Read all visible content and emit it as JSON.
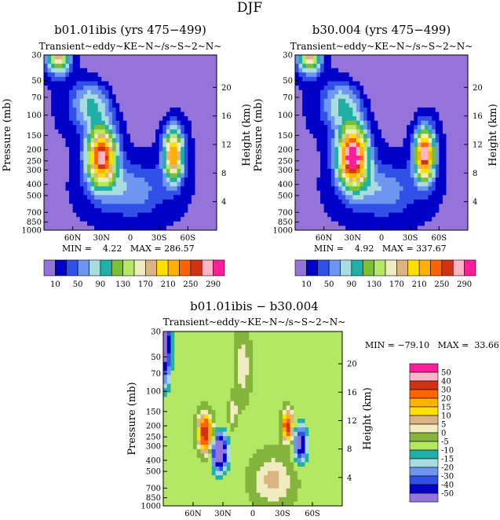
{
  "page_title": "DJF",
  "panels": [
    {
      "title": "b01.01ibis (yrs 475−499)",
      "subtitle": "Transient~eddy~KE~N~/s~S~2~N~",
      "ylabel_left": "Pressure (mb)",
      "ylabel_right": "Height (km)",
      "stats": "MIN =    4.22   MAX = 286.57"
    },
    {
      "title": "b30.004 (yrs 475−499)",
      "subtitle": "Transient~eddy~KE~N~/s~S~2~N~",
      "ylabel_left": "Pressure (mb)",
      "ylabel_right": "Height (km)",
      "stats": "MIN =    4.92   MAX = 337.67"
    },
    {
      "title": "b01.01ibis − b30.004",
      "subtitle": "Transient~eddy~KE~N~/s~S~2~N~",
      "ylabel_left": "Pressure (mb)",
      "ylabel_right": "Height (km)",
      "stats": "MIN = −79.10   MAX =  33.66"
    }
  ],
  "chart_data": [
    {
      "type": "heatmap",
      "title": "b01.01ibis (yrs 475−499)",
      "xlabel": "",
      "ylabel": "Pressure (mb)",
      "y2label": "Height (km)",
      "x_ticks": [
        "60N",
        "30N",
        "0",
        "30S",
        "60S"
      ],
      "x_tick_values": [
        60,
        30,
        0,
        -30,
        -60
      ],
      "xlim": [
        90,
        -90
      ],
      "y_ticks": [
        30,
        50,
        70,
        100,
        150,
        200,
        250,
        300,
        400,
        500,
        700,
        850,
        1000
      ],
      "ylim": [
        30,
        1000
      ],
      "y_scale": "log",
      "y2_ticks": [
        4,
        8,
        12,
        16,
        20
      ],
      "colorbar_labels": [
        10,
        50,
        90,
        130,
        170,
        210,
        250,
        290
      ],
      "colorbar_colors": [
        "#9474d8",
        "#0000c8",
        "#3050e8",
        "#6e96f0",
        "#a8dce0",
        "#20b0a8",
        "#7cc030",
        "#b4e864",
        "#f0ecc0",
        "#dcb484",
        "#ffe000",
        "#ffb000",
        "#ff6400",
        "#d23214",
        "#ffb4c8",
        "#ff1e9a"
      ],
      "min": 4.22,
      "max": 286.57,
      "maxima": [
        {
          "lat": 30,
          "p": 230,
          "value": 286.57
        },
        {
          "lat": -45,
          "p": 220,
          "value": 240
        }
      ]
    },
    {
      "type": "heatmap",
      "title": "b30.004 (yrs 475−499)",
      "xlabel": "",
      "ylabel": "Pressure (mb)",
      "y2label": "Height (km)",
      "x_ticks": [
        "60N",
        "30N",
        "0",
        "30S",
        "60S"
      ],
      "x_tick_values": [
        60,
        30,
        0,
        -30,
        -60
      ],
      "xlim": [
        90,
        -90
      ],
      "y_ticks": [
        30,
        50,
        70,
        100,
        150,
        200,
        250,
        300,
        400,
        500,
        700,
        850,
        1000
      ],
      "ylim": [
        30,
        1000
      ],
      "y_scale": "log",
      "y2_ticks": [
        4,
        8,
        12,
        16,
        20
      ],
      "colorbar_labels": [
        10,
        50,
        90,
        130,
        170,
        210,
        250,
        290
      ],
      "colorbar_colors": [
        "#9474d8",
        "#0000c8",
        "#3050e8",
        "#6e96f0",
        "#a8dce0",
        "#20b0a8",
        "#7cc030",
        "#b4e864",
        "#f0ecc0",
        "#dcb484",
        "#ffe000",
        "#ffb000",
        "#ff6400",
        "#d23214",
        "#ffb4c8",
        "#ff1e9a"
      ],
      "min": 4.92,
      "max": 337.67,
      "maxima": [
        {
          "lat": 30,
          "p": 230,
          "value": 337.67
        },
        {
          "lat": -45,
          "p": 220,
          "value": 260
        }
      ]
    },
    {
      "type": "heatmap",
      "title": "b01.01ibis − b30.004",
      "xlabel": "",
      "ylabel": "Pressure (mb)",
      "y2label": "Height (km)",
      "x_ticks": [
        "60N",
        "30N",
        "0",
        "30S",
        "60S"
      ],
      "x_tick_values": [
        60,
        30,
        0,
        -30,
        -60
      ],
      "xlim": [
        90,
        -90
      ],
      "y_ticks": [
        30,
        50,
        70,
        100,
        150,
        200,
        250,
        300,
        400,
        500,
        700,
        850,
        1000
      ],
      "ylim": [
        30,
        1000
      ],
      "y_scale": "log",
      "y2_ticks": [
        4,
        8,
        12,
        16,
        20
      ],
      "colorbar_labels": [
        50,
        40,
        30,
        20,
        15,
        10,
        5,
        0,
        -5,
        -10,
        -15,
        -20,
        -30,
        -40,
        -50
      ],
      "colorbar_colors": [
        "#ff1e9a",
        "#ffb4c8",
        "#d23214",
        "#ff6400",
        "#ffb000",
        "#ffe000",
        "#dcb484",
        "#f0ecc0",
        "#84b43c",
        "#b4e864",
        "#20b0a8",
        "#a8dce0",
        "#6e96f0",
        "#3050e8",
        "#0000c8",
        "#9474d8"
      ],
      "min": -79.1,
      "max": 33.66,
      "maxima": [
        {
          "lat": 50,
          "p": 230,
          "value": 33.66
        },
        {
          "lat": -35,
          "p": 200,
          "value": 30
        }
      ],
      "minima": [
        {
          "lat": 35,
          "p": 340,
          "value": -79.1
        },
        {
          "lat": -48,
          "p": 280,
          "value": -45
        }
      ]
    }
  ]
}
